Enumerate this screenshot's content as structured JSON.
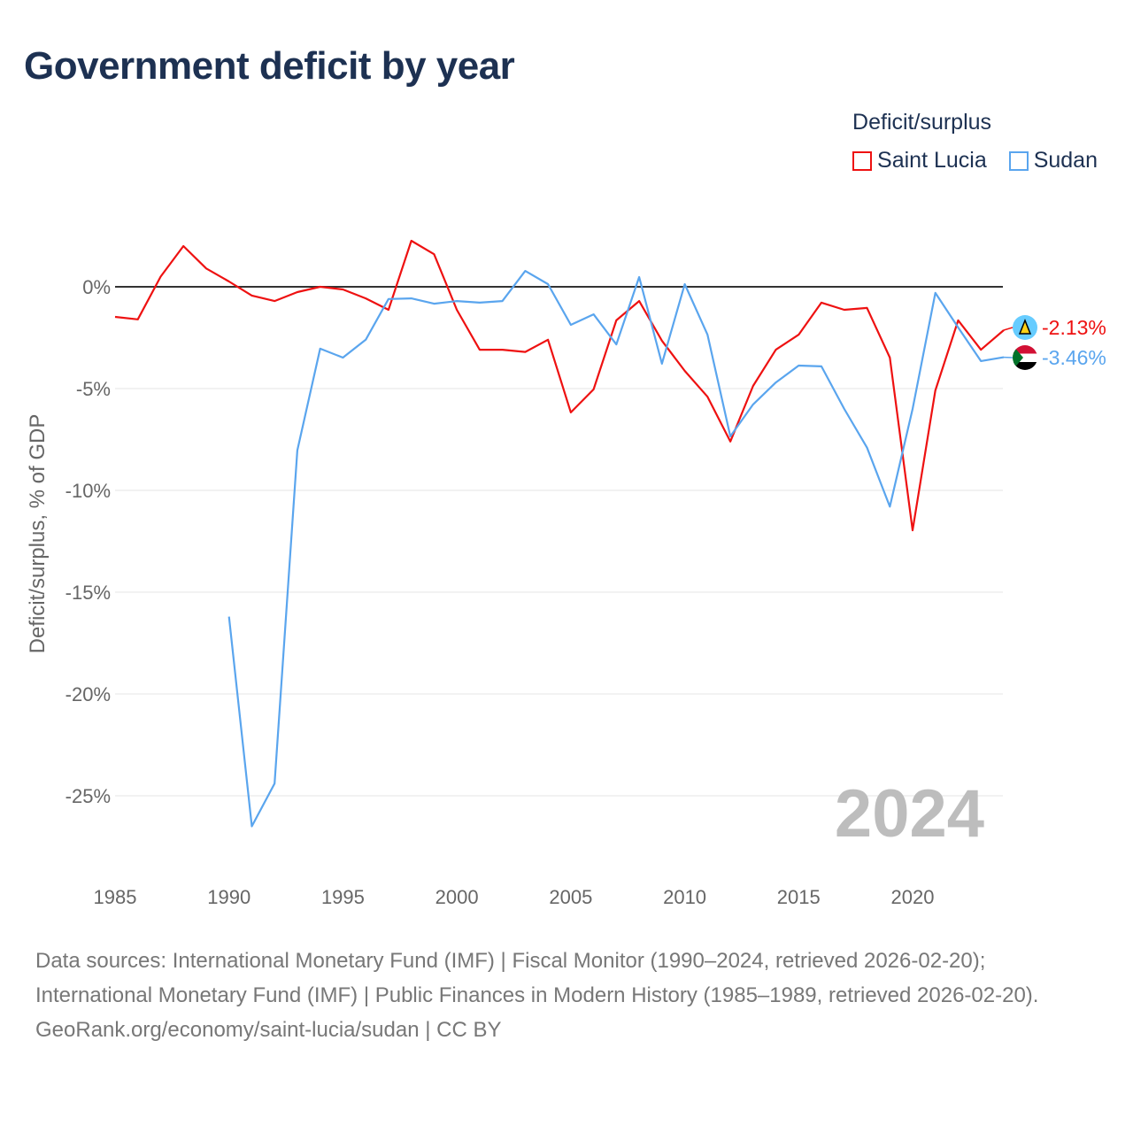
{
  "title": "Government deficit by year",
  "legend": {
    "title": "Deficit/surplus",
    "items": [
      {
        "label": "Saint Lucia",
        "color": "#ee1111"
      },
      {
        "label": "Sudan",
        "color": "#5aa5ee"
      }
    ]
  },
  "watermark_year": "2024",
  "end_labels": [
    "-2.13%",
    "-3.46%"
  ],
  "footer": {
    "sources": "Data sources: International Monetary Fund (IMF) | Fiscal Monitor (1990–2024, retrieved 2026-02-20); International Monetary Fund (IMF) | Public Finances in Modern History (1985–1989, retrieved 2026-02-20).",
    "credit": "GeoRank.org/economy/saint-lucia/sudan | CC BY"
  },
  "chart_data": {
    "type": "line",
    "title": "Government deficit by year",
    "xlabel": "",
    "ylabel": "Deficit/surplus, % of GDP",
    "xlim": [
      1985,
      2024
    ],
    "ylim": [
      -28,
      3
    ],
    "x_ticks": [
      1985,
      1990,
      1995,
      2000,
      2005,
      2010,
      2015,
      2020
    ],
    "y_ticks": [
      0,
      -5,
      -10,
      -15,
      -20,
      -25
    ],
    "y_tick_labels": [
      "0%",
      "-5%",
      "-10%",
      "-15%",
      "-20%",
      "-25%"
    ],
    "grid": true,
    "legend_position": "top-right",
    "series": [
      {
        "name": "Saint Lucia",
        "color": "#ee1111",
        "start_year": 1985,
        "values": [
          -1.48,
          -1.6,
          0.5,
          2.0,
          0.9,
          0.26,
          -0.43,
          -0.7,
          -0.26,
          0,
          -0.13,
          -0.57,
          -1.13,
          2.26,
          1.6,
          -1.13,
          -3.09,
          -3.09,
          -3.2,
          -2.6,
          -6.17,
          -5.04,
          -1.65,
          -0.7,
          -2.65,
          -4.13,
          -5.4,
          -7.6,
          -4.87,
          -3.09,
          -2.35,
          -0.78,
          -1.13,
          -1.04,
          -3.48,
          -11.96,
          -5.09,
          -1.65,
          -3.09,
          -2.13
        ]
      },
      {
        "name": "Sudan",
        "color": "#5aa5ee",
        "start_year": 1990,
        "values": [
          -16.2,
          -26.5,
          -24.4,
          -8.04,
          -3.04,
          -3.48,
          -2.6,
          -0.6,
          -0.57,
          -0.83,
          -0.7,
          -0.78,
          -0.7,
          0.78,
          0.13,
          -1.87,
          -1.35,
          -2.83,
          0.48,
          -3.78,
          0.13,
          -2.35,
          -7.35,
          -5.78,
          -4.7,
          -3.87,
          -3.91,
          -6.0,
          -7.9,
          -10.8,
          -6.0,
          -0.3,
          -2.0,
          -3.65,
          -3.46
        ]
      }
    ]
  }
}
